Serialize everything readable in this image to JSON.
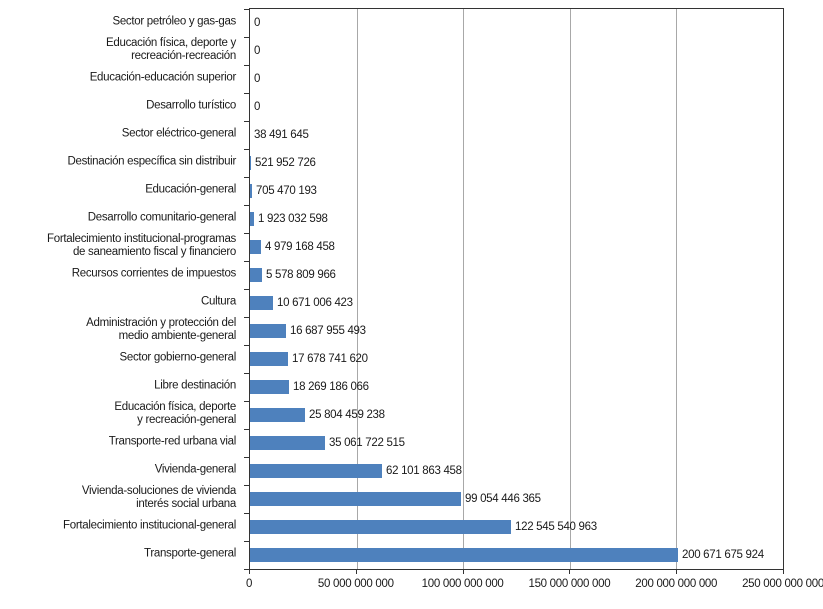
{
  "chart_data": {
    "type": "bar",
    "orientation": "horizontal",
    "title": "",
    "xlabel": "",
    "ylabel": "",
    "xlim": [
      0,
      250000000000
    ],
    "grid": "vertical",
    "legend_position": "none",
    "colors": {
      "bar": "#4E81BD",
      "gridline": "#A8A8A8",
      "axis": "#333333",
      "text": "#1A1A1A",
      "background": "#FFFFFF"
    },
    "x_ticks": [
      {
        "value": 0,
        "label": "0"
      },
      {
        "value": 50000000000,
        "label": "50 000 000 000"
      },
      {
        "value": 100000000000,
        "label": "100 000 000 000"
      },
      {
        "value": 150000000000,
        "label": "150 000 000 000"
      },
      {
        "value": 200000000000,
        "label": "200 000 000 000"
      },
      {
        "value": 250000000000,
        "label": "250 000 000 000"
      }
    ],
    "bars": [
      {
        "label": "Sector petróleo y gas-gas",
        "value": 0,
        "value_label": "0"
      },
      {
        "label": "Educación física, deporte y\nrecreación-recreación",
        "value": 0,
        "value_label": "0"
      },
      {
        "label": "Educación-educación superior",
        "value": 0,
        "value_label": "0"
      },
      {
        "label": "Desarrollo turístico",
        "value": 0,
        "value_label": "0"
      },
      {
        "label": "Sector eléctrico-general",
        "value": 38491645,
        "value_label": "38 491 645"
      },
      {
        "label": "Destinación específica sin distribuir",
        "value": 521952726,
        "value_label": "521 952 726"
      },
      {
        "label": "Educación-general",
        "value": 705470193,
        "value_label": "705 470 193"
      },
      {
        "label": "Desarrollo comunitario-general",
        "value": 1923032598,
        "value_label": "1 923 032 598"
      },
      {
        "label": "Fortalecimiento institucional-programas\nde saneamiento fiscal y financiero",
        "value": 4979168458,
        "value_label": "4 979 168 458"
      },
      {
        "label": "Recursos corrientes de impuestos",
        "value": 5578809966,
        "value_label": "5 578 809 966"
      },
      {
        "label": "Cultura",
        "value": 10671006423,
        "value_label": "10 671 006 423"
      },
      {
        "label": "Administración y protección del\nmedio ambiente-general",
        "value": 16687955493,
        "value_label": "16 687 955 493"
      },
      {
        "label": "Sector gobierno-general",
        "value": 17678741620,
        "value_label": "17 678 741 620"
      },
      {
        "label": "Libre destinación",
        "value": 18269186066,
        "value_label": "18 269 186 066"
      },
      {
        "label": "Educación física, deporte\ny recreación-general",
        "value": 25804459238,
        "value_label": "25 804 459 238"
      },
      {
        "label": "Transporte-red urbana vial",
        "value": 35061722515,
        "value_label": "35 061 722 515"
      },
      {
        "label": "Vivienda-general",
        "value": 62101863458,
        "value_label": "62 101 863 458"
      },
      {
        "label": "Vivienda-soluciones de vivienda\ninterés social urbana",
        "value": 99054446365,
        "value_label": "99 054 446 365"
      },
      {
        "label": "Fortalecimiento institucional-general",
        "value": 122545540963,
        "value_label": "122 545 540 963"
      },
      {
        "label": "Transporte-general",
        "value": 200671675924,
        "value_label": "200 671 675 924"
      }
    ]
  }
}
